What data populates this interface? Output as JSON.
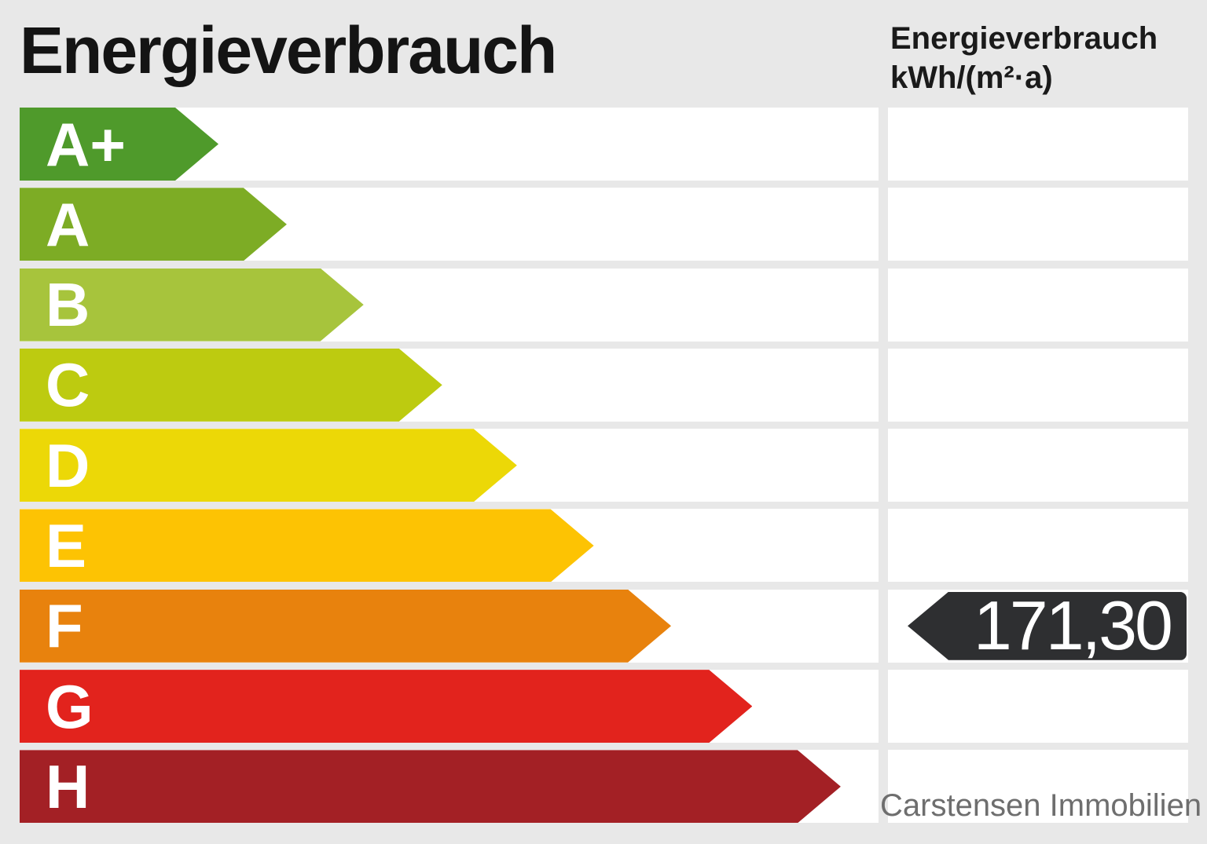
{
  "header": {
    "title": "Energieverbrauch",
    "unit_line1": "Energieverbrauch",
    "unit_line2": "kWh/(m²·a)"
  },
  "chart_data": {
    "type": "bar",
    "title": "Energieverbrauch",
    "unit": "kWh/(m²·a)",
    "orientation": "horizontal",
    "categories": [
      "A+",
      "A",
      "B",
      "C",
      "D",
      "E",
      "F",
      "G",
      "H"
    ],
    "bands": [
      {
        "label": "A+",
        "color": "#4f9a2b",
        "width_pct": 23.15
      },
      {
        "label": "A",
        "color": "#7dac25",
        "width_pct": 31.1
      },
      {
        "label": "B",
        "color": "#a7c43c",
        "width_pct": 40.05
      },
      {
        "label": "C",
        "color": "#bdcb10",
        "width_pct": 49.2
      },
      {
        "label": "D",
        "color": "#ecd807",
        "width_pct": 57.9
      },
      {
        "label": "E",
        "color": "#fdc303",
        "width_pct": 66.85
      },
      {
        "label": "F",
        "color": "#e8820d",
        "width_pct": 75.85
      },
      {
        "label": "G",
        "color": "#e2231d",
        "width_pct": 85.3
      },
      {
        "label": "H",
        "color": "#a32025",
        "width_pct": 95.6
      }
    ],
    "value": "171,30",
    "value_numeric": 171.3,
    "value_band": "F",
    "value_arrow_color": "#2e2f31"
  },
  "footer": {
    "watermark": "Carstensen Immobilien"
  }
}
